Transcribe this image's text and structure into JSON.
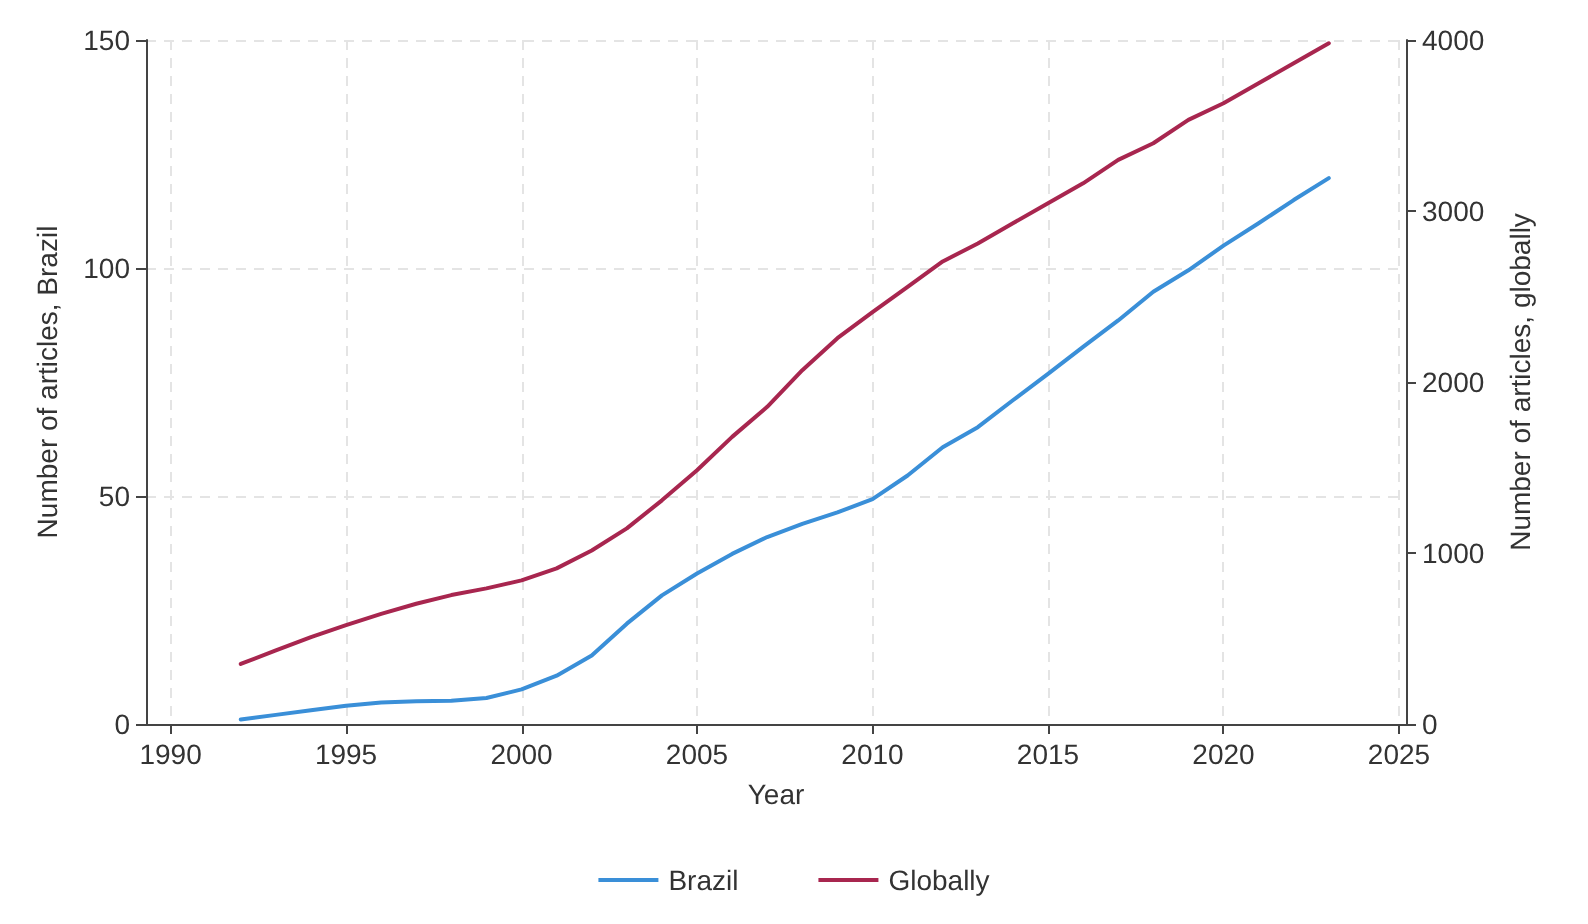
{
  "chart_data": {
    "type": "line",
    "xlabel": "Year",
    "ylabel": "Number of articles, Brazil",
    "y2label": "Number of articles, globally",
    "x": [
      1992,
      1993,
      1994,
      1995,
      1996,
      1997,
      1998,
      1999,
      2000,
      2001,
      2002,
      2003,
      2004,
      2005,
      2006,
      2007,
      2008,
      2009,
      2010,
      2011,
      2012,
      2013,
      2014,
      2015,
      2016,
      2017,
      2018,
      2019,
      2020,
      2021,
      2022,
      2023
    ],
    "series": [
      {
        "name": "Brazil",
        "color": "#3a8fd8",
        "values": [
          1,
          2,
          3,
          4,
          4.7,
          5,
          5.1,
          5.7,
          7.6,
          10.6,
          15,
          22,
          28.2,
          33,
          37.3,
          41,
          43.9,
          46.4,
          49.3,
          54.5,
          60.7,
          65.1,
          71,
          76.8,
          82.7,
          88.5,
          94.8,
          99.5,
          104.9,
          109.8,
          114.9,
          119.7
        ]
      },
      {
        "name": "Globally",
        "color": "#a8264f",
        "axis": "y2",
        "values": [
          351,
          430,
          508,
          578,
          644,
          703,
          754,
          793,
          840,
          910,
          1015,
          1144,
          1308,
          1484,
          1679,
          1855,
          2069,
          2256,
          2409,
          2557,
          2705,
          2810,
          2928,
          3045,
          3162,
          3299,
          3396,
          3533,
          3630,
          3747,
          3864,
          3981
        ]
      }
    ],
    "xlim": [
      1989.3,
      2025.2
    ],
    "xticks": [
      1990,
      1995,
      2000,
      2005,
      2010,
      2015,
      2020,
      2025
    ],
    "ylim": [
      0,
      150
    ],
    "yticks": [
      0,
      50,
      100,
      150
    ],
    "y2lim": [
      0,
      4000
    ],
    "y2ticks": [
      0,
      1000,
      2000,
      3000,
      4000
    ],
    "grid": true,
    "legend": "bottom",
    "marker": "none",
    "line_style": "solid"
  }
}
